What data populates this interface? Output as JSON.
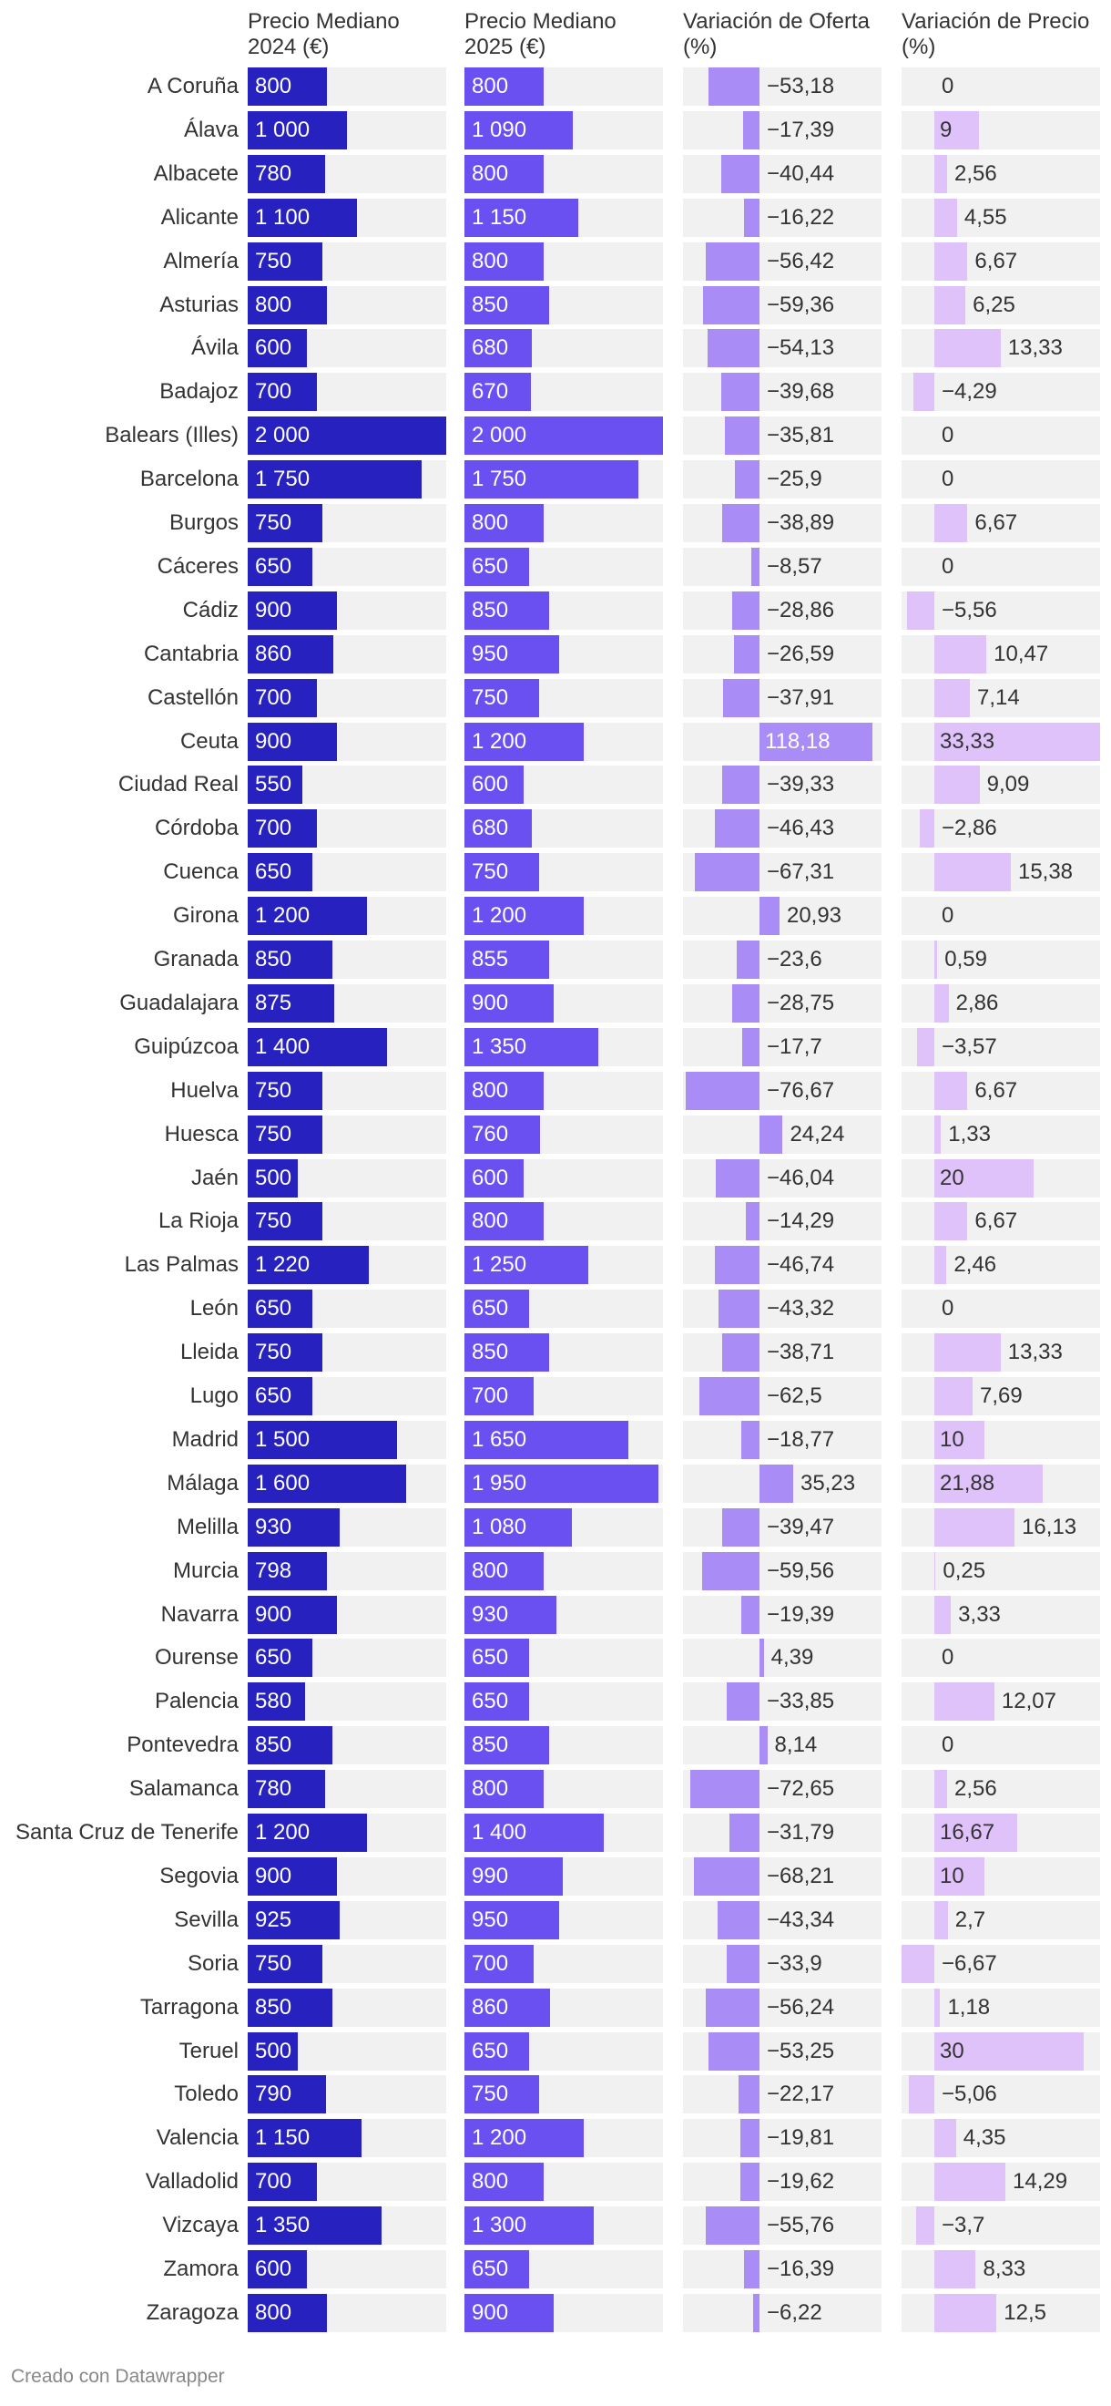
{
  "chart_data": {
    "type": "table",
    "columns": [
      {
        "key": "p2024",
        "header_lines": [
          "Precio Mediano",
          "2024 (€)"
        ],
        "color": "#2722bf"
      },
      {
        "key": "p2025",
        "header_lines": [
          "Precio Mediano",
          "2025 (€)"
        ],
        "color": "#6a50f0"
      },
      {
        "key": "voferta",
        "header_lines": [
          "Variación de Oferta",
          "(%)"
        ],
        "color": "#a98cf6"
      },
      {
        "key": "vprecio",
        "header_lines": [
          "Variación de Precio",
          "(%)"
        ],
        "color": "#e0c2fb"
      }
    ],
    "rows": [
      {
        "provincia": "A Coruña",
        "p2024": "800",
        "p2025": "800",
        "voferta": "−53,18",
        "vprecio": "0"
      },
      {
        "provincia": "Álava",
        "p2024": "1 000",
        "p2025": "1 090",
        "voferta": "−17,39",
        "vprecio": "9"
      },
      {
        "provincia": "Albacete",
        "p2024": "780",
        "p2025": "800",
        "voferta": "−40,44",
        "vprecio": "2,56"
      },
      {
        "provincia": "Alicante",
        "p2024": "1 100",
        "p2025": "1 150",
        "voferta": "−16,22",
        "vprecio": "4,55"
      },
      {
        "provincia": "Almería",
        "p2024": "750",
        "p2025": "800",
        "voferta": "−56,42",
        "vprecio": "6,67"
      },
      {
        "provincia": "Asturias",
        "p2024": "800",
        "p2025": "850",
        "voferta": "−59,36",
        "vprecio": "6,25"
      },
      {
        "provincia": "Ávila",
        "p2024": "600",
        "p2025": "680",
        "voferta": "−54,13",
        "vprecio": "13,33"
      },
      {
        "provincia": "Badajoz",
        "p2024": "700",
        "p2025": "670",
        "voferta": "−39,68",
        "vprecio": "−4,29"
      },
      {
        "provincia": "Balears (Illes)",
        "p2024": "2 000",
        "p2025": "2 000",
        "voferta": "−35,81",
        "vprecio": "0"
      },
      {
        "provincia": "Barcelona",
        "p2024": "1 750",
        "p2025": "1 750",
        "voferta": "−25,9",
        "vprecio": "0"
      },
      {
        "provincia": "Burgos",
        "p2024": "750",
        "p2025": "800",
        "voferta": "−38,89",
        "vprecio": "6,67"
      },
      {
        "provincia": "Cáceres",
        "p2024": "650",
        "p2025": "650",
        "voferta": "−8,57",
        "vprecio": "0"
      },
      {
        "provincia": "Cádiz",
        "p2024": "900",
        "p2025": "850",
        "voferta": "−28,86",
        "vprecio": "−5,56"
      },
      {
        "provincia": "Cantabria",
        "p2024": "860",
        "p2025": "950",
        "voferta": "−26,59",
        "vprecio": "10,47"
      },
      {
        "provincia": "Castellón",
        "p2024": "700",
        "p2025": "750",
        "voferta": "−37,91",
        "vprecio": "7,14"
      },
      {
        "provincia": "Ceuta",
        "p2024": "900",
        "p2025": "1 200",
        "voferta": "118,18",
        "vprecio": "33,33"
      },
      {
        "provincia": "Ciudad Real",
        "p2024": "550",
        "p2025": "600",
        "voferta": "−39,33",
        "vprecio": "9,09"
      },
      {
        "provincia": "Córdoba",
        "p2024": "700",
        "p2025": "680",
        "voferta": "−46,43",
        "vprecio": "−2,86"
      },
      {
        "provincia": "Cuenca",
        "p2024": "650",
        "p2025": "750",
        "voferta": "−67,31",
        "vprecio": "15,38"
      },
      {
        "provincia": "Girona",
        "p2024": "1 200",
        "p2025": "1 200",
        "voferta": "20,93",
        "vprecio": "0"
      },
      {
        "provincia": "Granada",
        "p2024": "850",
        "p2025": "855",
        "voferta": "−23,6",
        "vprecio": "0,59"
      },
      {
        "provincia": "Guadalajara",
        "p2024": "875",
        "p2025": "900",
        "voferta": "−28,75",
        "vprecio": "2,86"
      },
      {
        "provincia": "Guipúzcoa",
        "p2024": "1 400",
        "p2025": "1 350",
        "voferta": "−17,7",
        "vprecio": "−3,57"
      },
      {
        "provincia": "Huelva",
        "p2024": "750",
        "p2025": "800",
        "voferta": "−76,67",
        "vprecio": "6,67"
      },
      {
        "provincia": "Huesca",
        "p2024": "750",
        "p2025": "760",
        "voferta": "24,24",
        "vprecio": "1,33"
      },
      {
        "provincia": "Jaén",
        "p2024": "500",
        "p2025": "600",
        "voferta": "−46,04",
        "vprecio": "20"
      },
      {
        "provincia": "La Rioja",
        "p2024": "750",
        "p2025": "800",
        "voferta": "−14,29",
        "vprecio": "6,67"
      },
      {
        "provincia": "Las Palmas",
        "p2024": "1 220",
        "p2025": "1 250",
        "voferta": "−46,74",
        "vprecio": "2,46"
      },
      {
        "provincia": "León",
        "p2024": "650",
        "p2025": "650",
        "voferta": "−43,32",
        "vprecio": "0"
      },
      {
        "provincia": "Lleida",
        "p2024": "750",
        "p2025": "850",
        "voferta": "−38,71",
        "vprecio": "13,33"
      },
      {
        "provincia": "Lugo",
        "p2024": "650",
        "p2025": "700",
        "voferta": "−62,5",
        "vprecio": "7,69"
      },
      {
        "provincia": "Madrid",
        "p2024": "1 500",
        "p2025": "1 650",
        "voferta": "−18,77",
        "vprecio": "10"
      },
      {
        "provincia": "Málaga",
        "p2024": "1 600",
        "p2025": "1 950",
        "voferta": "35,23",
        "vprecio": "21,88"
      },
      {
        "provincia": "Melilla",
        "p2024": "930",
        "p2025": "1 080",
        "voferta": "−39,47",
        "vprecio": "16,13"
      },
      {
        "provincia": "Murcia",
        "p2024": "798",
        "p2025": "800",
        "voferta": "−59,56",
        "vprecio": "0,25"
      },
      {
        "provincia": "Navarra",
        "p2024": "900",
        "p2025": "930",
        "voferta": "−19,39",
        "vprecio": "3,33"
      },
      {
        "provincia": "Ourense",
        "p2024": "650",
        "p2025": "650",
        "voferta": "4,39",
        "vprecio": "0"
      },
      {
        "provincia": "Palencia",
        "p2024": "580",
        "p2025": "650",
        "voferta": "−33,85",
        "vprecio": "12,07"
      },
      {
        "provincia": "Pontevedra",
        "p2024": "850",
        "p2025": "850",
        "voferta": "8,14",
        "vprecio": "0"
      },
      {
        "provincia": "Salamanca",
        "p2024": "780",
        "p2025": "800",
        "voferta": "−72,65",
        "vprecio": "2,56"
      },
      {
        "provincia": "Santa Cruz de Tenerife",
        "p2024": "1 200",
        "p2025": "1 400",
        "voferta": "−31,79",
        "vprecio": "16,67"
      },
      {
        "provincia": "Segovia",
        "p2024": "900",
        "p2025": "990",
        "voferta": "−68,21",
        "vprecio": "10"
      },
      {
        "provincia": "Sevilla",
        "p2024": "925",
        "p2025": "950",
        "voferta": "−43,34",
        "vprecio": "2,7"
      },
      {
        "provincia": "Soria",
        "p2024": "750",
        "p2025": "700",
        "voferta": "−33,9",
        "vprecio": "−6,67"
      },
      {
        "provincia": "Tarragona",
        "p2024": "850",
        "p2025": "860",
        "voferta": "−56,24",
        "vprecio": "1,18"
      },
      {
        "provincia": "Teruel",
        "p2024": "500",
        "p2025": "650",
        "voferta": "−53,25",
        "vprecio": "30"
      },
      {
        "provincia": "Toledo",
        "p2024": "790",
        "p2025": "750",
        "voferta": "−22,17",
        "vprecio": "−5,06"
      },
      {
        "provincia": "Valencia",
        "p2024": "1 150",
        "p2025": "1 200",
        "voferta": "−19,81",
        "vprecio": "4,35"
      },
      {
        "provincia": "Valladolid",
        "p2024": "700",
        "p2025": "800",
        "voferta": "−19,62",
        "vprecio": "14,29"
      },
      {
        "provincia": "Vizcaya",
        "p2024": "1 350",
        "p2025": "1 300",
        "voferta": "−55,76",
        "vprecio": "−3,7"
      },
      {
        "provincia": "Zamora",
        "p2024": "600",
        "p2025": "650",
        "voferta": "−16,39",
        "vprecio": "8,33"
      },
      {
        "provincia": "Zaragoza",
        "p2024": "800",
        "p2025": "900",
        "voferta": "−6,22",
        "vprecio": "12,5"
      }
    ]
  },
  "footer": {
    "credit": "Creado con Datawrapper"
  }
}
